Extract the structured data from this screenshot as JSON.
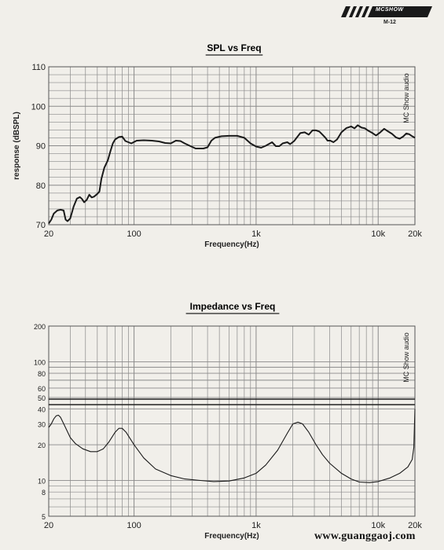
{
  "header": {
    "brand": "MCSHOW",
    "model": "M-12"
  },
  "footer": {
    "url": "www.guanggaoj.com"
  },
  "colors": {
    "background": "#f1efea",
    "grid": "#8a8a8a",
    "curve": "#1a1a1a"
  },
  "chart_data": [
    {
      "type": "line",
      "title": "SPL vs Freq",
      "xlabel": "Frequency(Hz)",
      "ylabel": "response (dBSPL)",
      "watermark": "MC Show audio",
      "x_scale": "log",
      "xlim": [
        20,
        20000
      ],
      "ylim": [
        70,
        110
      ],
      "x_ticks": [
        {
          "value": 20,
          "label": "20"
        },
        {
          "value": 100,
          "label": "100"
        },
        {
          "value": 1000,
          "label": "1k"
        },
        {
          "value": 10000,
          "label": "10k"
        },
        {
          "value": 20000,
          "label": "20k"
        }
      ],
      "y_ticks": [
        {
          "value": 70,
          "label": "70"
        },
        {
          "value": 80,
          "label": "80"
        },
        {
          "value": 90,
          "label": "90"
        },
        {
          "value": 100,
          "label": "100"
        },
        {
          "value": 110,
          "label": "110"
        }
      ],
      "grid": true,
      "series": [
        {
          "points": [
            [
              20,
              70.3
            ],
            [
              21,
              71.3
            ],
            [
              22,
              72.8
            ],
            [
              23.5,
              73.6
            ],
            [
              25,
              73.8
            ],
            [
              26.5,
              73.6
            ],
            [
              27.5,
              71.3
            ],
            [
              28.5,
              70.9
            ],
            [
              30,
              71.6
            ],
            [
              32,
              74.6
            ],
            [
              34,
              76.6
            ],
            [
              36,
              77.0
            ],
            [
              37.5,
              76.5
            ],
            [
              39,
              75.7
            ],
            [
              41,
              76.3
            ],
            [
              43,
              77.6
            ],
            [
              45,
              76.9
            ],
            [
              47,
              77.1
            ],
            [
              50,
              77.8
            ],
            [
              52,
              78.4
            ],
            [
              54,
              81.6
            ],
            [
              57,
              84.4
            ],
            [
              61,
              86.3
            ],
            [
              64,
              88.6
            ],
            [
              67,
              90.6
            ],
            [
              70,
              91.6
            ],
            [
              75,
              92.2
            ],
            [
              80,
              92.3
            ],
            [
              85,
              91.2
            ],
            [
              95,
              90.6
            ],
            [
              105,
              91.3
            ],
            [
              120,
              91.4
            ],
            [
              140,
              91.3
            ],
            [
              160,
              91.1
            ],
            [
              180,
              90.7
            ],
            [
              200,
              90.6
            ],
            [
              220,
              91.3
            ],
            [
              240,
              91.2
            ],
            [
              260,
              90.6
            ],
            [
              290,
              89.9
            ],
            [
              320,
              89.3
            ],
            [
              370,
              89.3
            ],
            [
              400,
              89.6
            ],
            [
              430,
              91.3
            ],
            [
              460,
              92.0
            ],
            [
              520,
              92.4
            ],
            [
              600,
              92.5
            ],
            [
              700,
              92.5
            ],
            [
              800,
              92.0
            ],
            [
              900,
              90.6
            ],
            [
              1000,
              89.8
            ],
            [
              1100,
              89.5
            ],
            [
              1200,
              90.0
            ],
            [
              1350,
              90.9
            ],
            [
              1450,
              89.9
            ],
            [
              1550,
              89.9
            ],
            [
              1650,
              90.6
            ],
            [
              1800,
              90.9
            ],
            [
              1900,
              90.4
            ],
            [
              2050,
              91.2
            ],
            [
              2300,
              93.2
            ],
            [
              2500,
              93.4
            ],
            [
              2700,
              92.8
            ],
            [
              2900,
              93.9
            ],
            [
              3100,
              93.9
            ],
            [
              3300,
              93.6
            ],
            [
              3500,
              92.8
            ],
            [
              3700,
              92.0
            ],
            [
              3850,
              91.3
            ],
            [
              4050,
              91.3
            ],
            [
              4300,
              90.9
            ],
            [
              4600,
              91.6
            ],
            [
              5000,
              93.4
            ],
            [
              5500,
              94.5
            ],
            [
              6000,
              94.9
            ],
            [
              6400,
              94.4
            ],
            [
              6800,
              95.2
            ],
            [
              7300,
              94.6
            ],
            [
              7800,
              94.4
            ],
            [
              8300,
              93.8
            ],
            [
              9000,
              93.2
            ],
            [
              9600,
              92.6
            ],
            [
              10400,
              93.4
            ],
            [
              11200,
              94.3
            ],
            [
              12100,
              93.6
            ],
            [
              13000,
              93.0
            ],
            [
              14000,
              92.1
            ],
            [
              15000,
              91.8
            ],
            [
              16000,
              92.3
            ],
            [
              17000,
              93.1
            ],
            [
              18000,
              92.9
            ],
            [
              19000,
              92.4
            ],
            [
              20000,
              92.0
            ]
          ]
        }
      ]
    },
    {
      "type": "line",
      "title": "Impedance  vs Freq",
      "xlabel": "Frequency(Hz)",
      "watermark": "MC Show audio",
      "x_scale": "log",
      "y_scale": "log",
      "xlim": [
        20,
        20000
      ],
      "ylim": [
        5,
        200
      ],
      "x_ticks": [
        {
          "value": 20,
          "label": "20"
        },
        {
          "value": 100,
          "label": "100"
        },
        {
          "value": 1000,
          "label": "1k"
        },
        {
          "value": 10000,
          "label": "10k"
        },
        {
          "value": 20000,
          "label": "20k"
        }
      ],
      "y_ticks": [
        {
          "value": 5,
          "label": "5"
        },
        {
          "value": 8,
          "label": "8"
        },
        {
          "value": 10,
          "label": "10"
        },
        {
          "value": 20,
          "label": "20"
        },
        {
          "value": 30,
          "label": "30"
        },
        {
          "value": 40,
          "label": "40"
        },
        {
          "value": 50,
          "label": "50"
        },
        {
          "value": 60,
          "label": "60"
        },
        {
          "value": 80,
          "label": "80"
        },
        {
          "value": 100,
          "label": "100"
        },
        {
          "value": 200,
          "label": "200"
        }
      ],
      "grid": true,
      "series": [
        {
          "points": [
            [
              20,
              28
            ],
            [
              21,
              30
            ],
            [
              22,
              33
            ],
            [
              23,
              35
            ],
            [
              24,
              35.5
            ],
            [
              25,
              34
            ],
            [
              27,
              29
            ],
            [
              30,
              23
            ],
            [
              33,
              20.5
            ],
            [
              38,
              18.5
            ],
            [
              44,
              17.5
            ],
            [
              50,
              17.5
            ],
            [
              56,
              18.5
            ],
            [
              62,
              21
            ],
            [
              70,
              25.5
            ],
            [
              75,
              27.5
            ],
            [
              80,
              27.5
            ],
            [
              86,
              25.5
            ],
            [
              100,
              20
            ],
            [
              120,
              15.5
            ],
            [
              150,
              12.5
            ],
            [
              200,
              11
            ],
            [
              260,
              10.3
            ],
            [
              350,
              10
            ],
            [
              450,
              9.8
            ],
            [
              600,
              9.9
            ],
            [
              800,
              10.5
            ],
            [
              1000,
              11.5
            ],
            [
              1200,
              13.5
            ],
            [
              1500,
              18
            ],
            [
              1800,
              25
            ],
            [
              2000,
              30
            ],
            [
              2200,
              31
            ],
            [
              2400,
              30
            ],
            [
              2700,
              25.5
            ],
            [
              3100,
              20
            ],
            [
              3500,
              16.5
            ],
            [
              4000,
              14
            ],
            [
              5000,
              11.5
            ],
            [
              6000,
              10.3
            ],
            [
              7000,
              9.7
            ],
            [
              8500,
              9.6
            ],
            [
              10000,
              9.8
            ],
            [
              12500,
              10.5
            ],
            [
              15000,
              11.5
            ],
            [
              17500,
              13
            ],
            [
              19000,
              15
            ],
            [
              19600,
              19
            ],
            [
              20000,
              40
            ]
          ]
        }
      ]
    }
  ]
}
